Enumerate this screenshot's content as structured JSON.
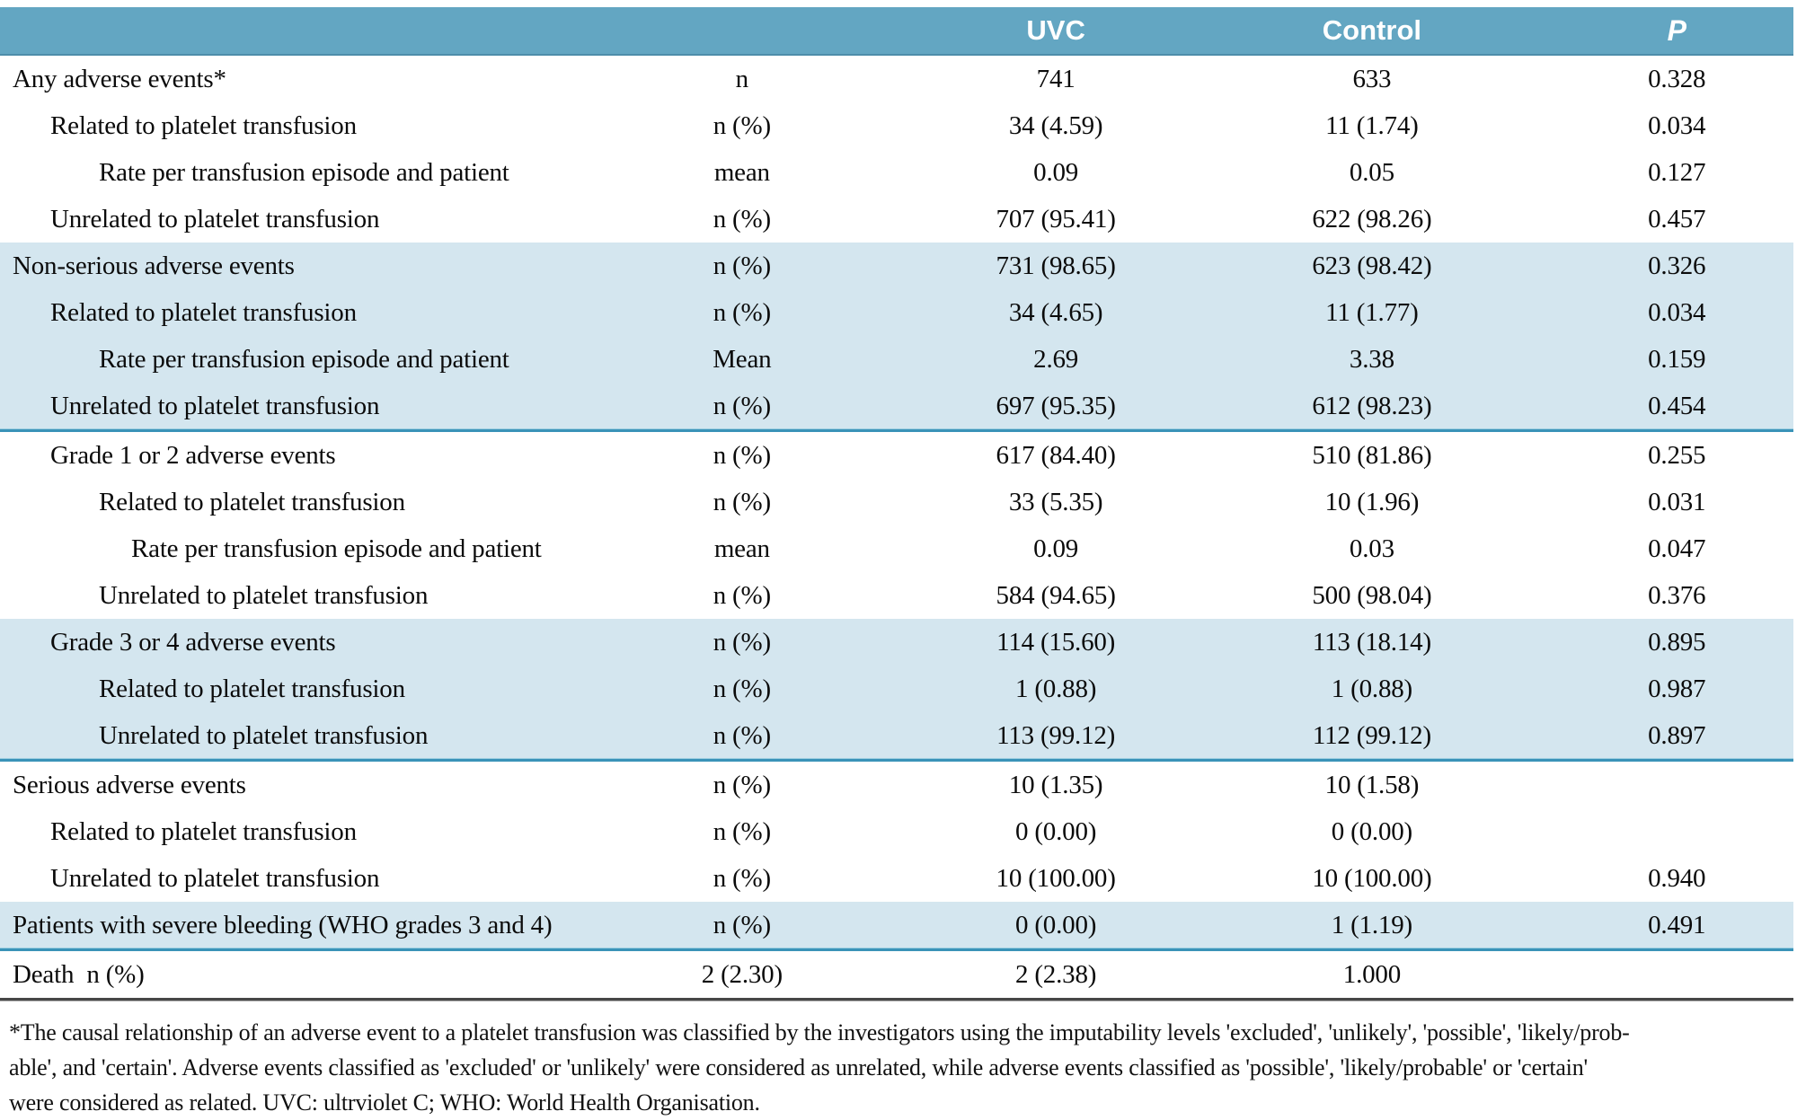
{
  "header": {
    "columns": [
      "",
      "",
      "UVC",
      "Control",
      "P"
    ]
  },
  "colors": {
    "header_bg": "#63a6c2",
    "band_bg": "#d4e6ef",
    "section_separator": "#3a93b8",
    "table_bottom_border": "#474747",
    "header_text": "#ffffff",
    "body_text": "#0b0b0b"
  },
  "rows": [
    {
      "label": "Any adverse events*",
      "indent": 0,
      "measure": "n",
      "uvc": "741",
      "control": "633",
      "p": "0.328",
      "band": "white",
      "sep": false
    },
    {
      "label": "Related to platelet transfusion",
      "indent": 1,
      "measure": "n (%)",
      "uvc": "34 (4.59)",
      "control": "11 (1.74)",
      "p": "0.034",
      "band": "white",
      "sep": false
    },
    {
      "label": "Rate per transfusion episode and patient",
      "indent": 2,
      "measure": "mean",
      "uvc": "0.09",
      "control": "0.05",
      "p": "0.127",
      "band": "white",
      "sep": false
    },
    {
      "label": "Unrelated to platelet transfusion",
      "indent": 1,
      "measure": "n (%)",
      "uvc": "707 (95.41)",
      "control": "622 (98.26)",
      "p": "0.457",
      "band": "white",
      "sep": false
    },
    {
      "label": "Non-serious adverse events",
      "indent": 0,
      "measure": "n (%)",
      "uvc": "731 (98.65)",
      "control": "623 (98.42)",
      "p": "0.326",
      "band": "blue",
      "sep": false
    },
    {
      "label": "Related to platelet transfusion",
      "indent": 1,
      "measure": "n (%)",
      "uvc": "34 (4.65)",
      "control": "11 (1.77)",
      "p": "0.034",
      "band": "blue",
      "sep": false
    },
    {
      "label": "Rate per transfusion episode and patient",
      "indent": 2,
      "measure": "Mean",
      "uvc": "2.69",
      "control": "3.38",
      "p": "0.159",
      "band": "blue",
      "sep": false
    },
    {
      "label": "Unrelated to platelet transfusion",
      "indent": 1,
      "measure": "n (%)",
      "uvc": "697 (95.35)",
      "control": "612 (98.23)",
      "p": "0.454",
      "band": "blue",
      "sep": true
    },
    {
      "label": "Grade 1 or 2 adverse events",
      "indent": 1,
      "measure": "n (%)",
      "uvc": "617 (84.40)",
      "control": "510 (81.86)",
      "p": "0.255",
      "band": "white",
      "sep": false
    },
    {
      "label": "Related to platelet transfusion",
      "indent": 2,
      "measure": "n (%)",
      "uvc": "33 (5.35)",
      "control": "10 (1.96)",
      "p": "0.031",
      "band": "white",
      "sep": false
    },
    {
      "label": "Rate per transfusion episode and patient",
      "indent": 3,
      "measure": "mean",
      "uvc": "0.09",
      "control": "0.03",
      "p": "0.047",
      "band": "white",
      "sep": false
    },
    {
      "label": "Unrelated to platelet transfusion",
      "indent": 2,
      "measure": "n (%)",
      "uvc": "584 (94.65)",
      "control": "500 (98.04)",
      "p": "0.376",
      "band": "white",
      "sep": false
    },
    {
      "label": "Grade 3 or 4 adverse events",
      "indent": 1,
      "measure": "n (%)",
      "uvc": "114 (15.60)",
      "control": "113 (18.14)",
      "p": "0.895",
      "band": "blue",
      "sep": false
    },
    {
      "label": "Related to platelet transfusion",
      "indent": 2,
      "measure": "n (%)",
      "uvc": "1 (0.88)",
      "control": "1 (0.88)",
      "p": "0.987",
      "band": "blue",
      "sep": false
    },
    {
      "label": "Unrelated to platelet transfusion",
      "indent": 2,
      "measure": "n (%)",
      "uvc": "113 (99.12)",
      "control": "112 (99.12)",
      "p": "0.897",
      "band": "blue",
      "sep": true
    },
    {
      "label": "Serious adverse events",
      "indent": 0,
      "measure": "n (%)",
      "uvc": "10 (1.35)",
      "control": "10 (1.58)",
      "p": "",
      "band": "white",
      "sep": false
    },
    {
      "label": "Related to platelet transfusion",
      "indent": 1,
      "measure": "n (%)",
      "uvc": "0 (0.00)",
      "control": "0 (0.00)",
      "p": "",
      "band": "white",
      "sep": false
    },
    {
      "label": "Unrelated to platelet transfusion",
      "indent": 1,
      "measure": "n (%)",
      "uvc": "10 (100.00)",
      "control": "10 (100.00)",
      "p": "0.940",
      "band": "white",
      "sep": false
    },
    {
      "label": "Patients with severe bleeding (WHO grades 3 and 4)",
      "indent": 0,
      "measure": "n (%)",
      "uvc": "0 (0.00)",
      "control": "1 (1.19)",
      "p": "0.491",
      "band": "blue",
      "sep": true
    },
    {
      "label": "Death  n (%)",
      "indent": 0,
      "measure": "2 (2.30)",
      "uvc": "2 (2.38)",
      "control": "1.000",
      "p": "",
      "band": "white",
      "sep": false
    }
  ],
  "footnote_lines": [
    "*The causal relationship of an adverse event to a platelet transfusion was classified by the investigators using the imputability levels 'excluded', 'unlikely', 'possible', 'likely/prob-",
    "able', and 'certain'. Adverse events classified as 'excluded' or 'unlikely' were considered as unrelated, while adverse events classified as 'possible', 'likely/probable' or 'certain'",
    "were considered as related. UVC: ultrviolet C; WHO: World Health Organisation."
  ]
}
